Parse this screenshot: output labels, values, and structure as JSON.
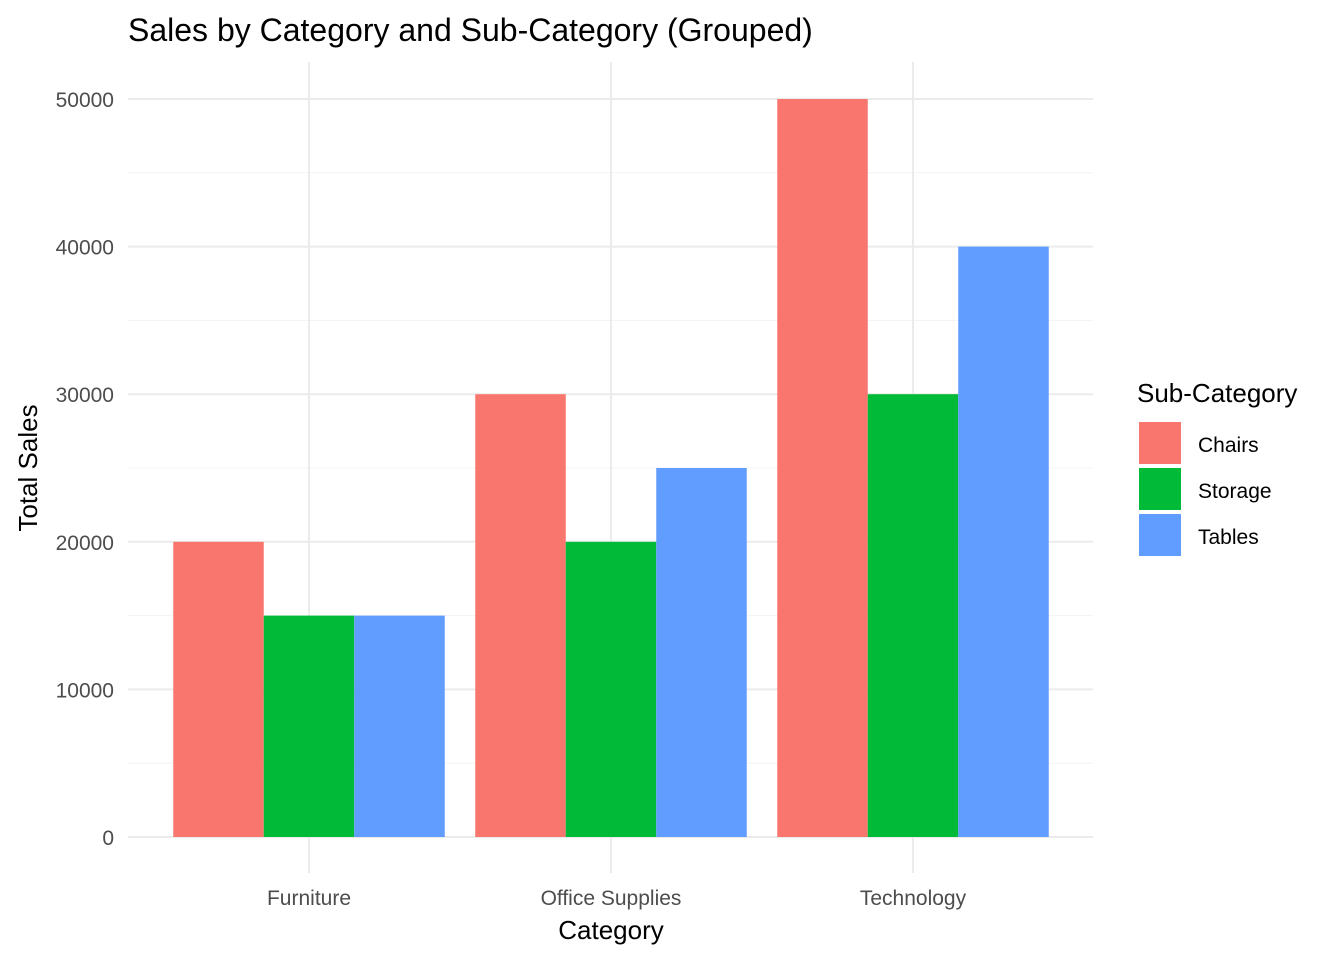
{
  "chart_data": {
    "type": "bar",
    "title": "Sales by Category and Sub-Category (Grouped)",
    "xlabel": "Category",
    "ylabel": "Total Sales",
    "categories": [
      "Furniture",
      "Office Supplies",
      "Technology"
    ],
    "series": [
      {
        "name": "Chairs",
        "color": "#F8766D",
        "values": [
          20000,
          30000,
          50000
        ]
      },
      {
        "name": "Storage",
        "color": "#00BA38",
        "values": [
          15000,
          20000,
          30000
        ]
      },
      {
        "name": "Tables",
        "color": "#619CFF",
        "values": [
          15000,
          25000,
          40000
        ]
      }
    ],
    "ylim": [
      0,
      52500
    ],
    "yticks": [
      0,
      10000,
      20000,
      30000,
      40000,
      50000
    ],
    "ytick_labels": [
      "0",
      "10000",
      "20000",
      "30000",
      "40000",
      "50000"
    ],
    "grid": true,
    "legend": {
      "title": "Sub-Category",
      "position": "right"
    }
  }
}
